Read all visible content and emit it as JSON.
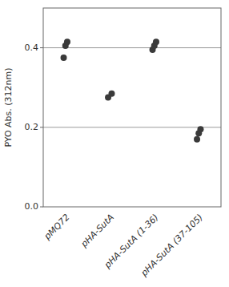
{
  "chart_data": {
    "type": "strip",
    "categories": [
      "pMQ72",
      "pHA-SutA",
      "pHA-SutA (1-36)",
      "pHA-SutA (37-105)"
    ],
    "values": [
      [
        0.375,
        0.405,
        0.415
      ],
      [
        0.275,
        0.285
      ],
      [
        0.395,
        0.405,
        0.415
      ],
      [
        0.17,
        0.185,
        0.195
      ]
    ],
    "color": "#3a3a3a",
    "ylabel": "PYO Abs. (312nm)",
    "ylim": [
      0.0,
      0.5
    ],
    "yticks": [
      {
        "value": 0.0,
        "label": "0.0"
      },
      0.2,
      0.4
    ],
    "reference_lines": [
      0.2,
      0.4
    ]
  }
}
